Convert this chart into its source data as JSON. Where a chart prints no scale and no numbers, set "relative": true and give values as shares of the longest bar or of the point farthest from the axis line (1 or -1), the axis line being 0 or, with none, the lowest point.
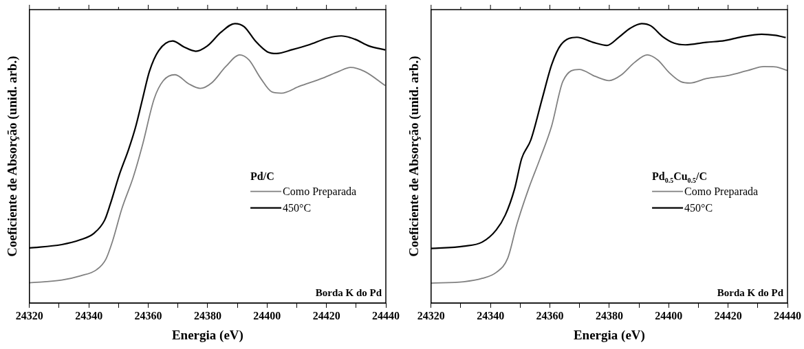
{
  "chart_data": [
    {
      "type": "line",
      "relative": true,
      "xlabel": "Energia (eV)",
      "ylabel": "Coeficiente de Absorção (unid. arb.)",
      "legend_title": "Pd/C",
      "legend": "right",
      "annotations": [
        "Borda K do Pd"
      ],
      "xlim": [
        24320,
        24440
      ],
      "xticks": [
        24320,
        {
          "value": 24330,
          "label": null
        },
        24340,
        {
          "value": 24350,
          "label": null
        },
        24360,
        {
          "value": 24370,
          "label": null
        },
        24380,
        {
          "value": 24390,
          "label": null
        },
        24400,
        {
          "value": 24410,
          "label": null
        },
        24420,
        {
          "value": 24430,
          "label": null
        },
        24440
      ],
      "grid": false,
      "marker": "none",
      "line_style": "solid",
      "series": [
        {
          "name": "Como Preparada",
          "color": "#808080",
          "x": [
            24320,
            24330.9,
            24337.1,
            24342.6,
            24345.7,
            24348,
            24351.1,
            24355,
            24358.1,
            24362,
            24365.1,
            24369,
            24373.7,
            24377.5,
            24381.4,
            24386.1,
            24390.8,
            24393.9,
            24397.8,
            24401.7,
            24404.8,
            24411,
            24418.8,
            24424.2,
            24428.1,
            24432.8,
            24439.8
          ],
          "values": [
            0.072,
            0.082,
            0.097,
            0.119,
            0.156,
            0.222,
            0.337,
            0.452,
            0.567,
            0.731,
            0.796,
            0.817,
            0.784,
            0.768,
            0.788,
            0.846,
            0.888,
            0.87,
            0.805,
            0.755,
            0.751,
            0.776,
            0.805,
            0.829,
            0.843,
            0.829,
            0.778
          ]
        },
        {
          "name": "450°C",
          "color": "#000000",
          "x": [
            24320,
            24330.9,
            24337.1,
            24341.8,
            24345.3,
            24347.2,
            24350.3,
            24353.4,
            24355.8,
            24358.1,
            24360.4,
            24363.5,
            24368.2,
            24372.1,
            24376,
            24379.9,
            24384.5,
            24389.2,
            24392.3,
            24396.2,
            24400.1,
            24403.2,
            24408.6,
            24414.1,
            24420.3,
            24425,
            24429.6,
            24434.3,
            24439.8
          ],
          "values": [
            0.197,
            0.209,
            0.226,
            0.25,
            0.296,
            0.353,
            0.46,
            0.55,
            0.632,
            0.731,
            0.829,
            0.903,
            0.938,
            0.916,
            0.901,
            0.92,
            0.969,
            1,
            0.989,
            0.936,
            0.899,
            0.893,
            0.907,
            0.924,
            0.948,
            0.956,
            0.944,
            0.92,
            0.906
          ]
        }
      ]
    },
    {
      "type": "line",
      "relative": true,
      "xlabel": "Energia (eV)",
      "ylabel": "Coeficiente de Absorção (unid. arb.)",
      "legend_title": "Pd$_{0.5}$Cu$_{0.5}$/C",
      "legend": "right",
      "annotations": [
        "Borda K do Pd"
      ],
      "xlim": [
        24320,
        24440
      ],
      "xticks": [
        24320,
        {
          "value": 24330,
          "label": null
        },
        24340,
        {
          "value": 24350,
          "label": null
        },
        24360,
        {
          "value": 24370,
          "label": null
        },
        24380,
        {
          "value": 24390,
          "label": null
        },
        24400,
        {
          "value": 24410,
          "label": null
        },
        24420,
        {
          "value": 24430,
          "label": null
        },
        24440
      ],
      "grid": false,
      "marker": "none",
      "line_style": "solid",
      "series": [
        {
          "name": "Como Preparada",
          "color": "#808080",
          "x": [
            24320,
            24331,
            24337.2,
            24341.9,
            24345.8,
            24348.9,
            24352.8,
            24356.7,
            24360.6,
            24364.4,
            24369.9,
            24375.3,
            24380,
            24383.9,
            24388.5,
            24392.8,
            24396.3,
            24400.2,
            24404.1,
            24407.2,
            24412.6,
            24420.4,
            24426.6,
            24432.1,
            24435.9,
            24440
          ],
          "values": [
            0.071,
            0.076,
            0.088,
            0.109,
            0.16,
            0.282,
            0.408,
            0.517,
            0.634,
            0.794,
            0.836,
            0.811,
            0.796,
            0.815,
            0.861,
            0.888,
            0.87,
            0.824,
            0.792,
            0.787,
            0.803,
            0.815,
            0.832,
            0.846,
            0.845,
            0.832
          ]
        },
        {
          "name": "450°C",
          "color": "#000000",
          "x": [
            24320,
            24331,
            24337.2,
            24341.9,
            24345,
            24348.1,
            24350.5,
            24353.6,
            24357.5,
            24360.6,
            24363.7,
            24369.1,
            24374.5,
            24379.2,
            24383.1,
            24387,
            24390.9,
            24394,
            24397.9,
            24401.8,
            24405.6,
            24412.6,
            24418.8,
            24424.3,
            24431.3,
            24435.9,
            24439.4
          ],
          "values": [
            0.195,
            0.203,
            0.218,
            0.261,
            0.315,
            0.408,
            0.517,
            0.584,
            0.735,
            0.853,
            0.924,
            0.951,
            0.933,
            0.922,
            0.95,
            0.983,
            1,
            0.992,
            0.954,
            0.93,
            0.924,
            0.933,
            0.939,
            0.952,
            0.962,
            0.958,
            0.95
          ]
        }
      ]
    }
  ]
}
